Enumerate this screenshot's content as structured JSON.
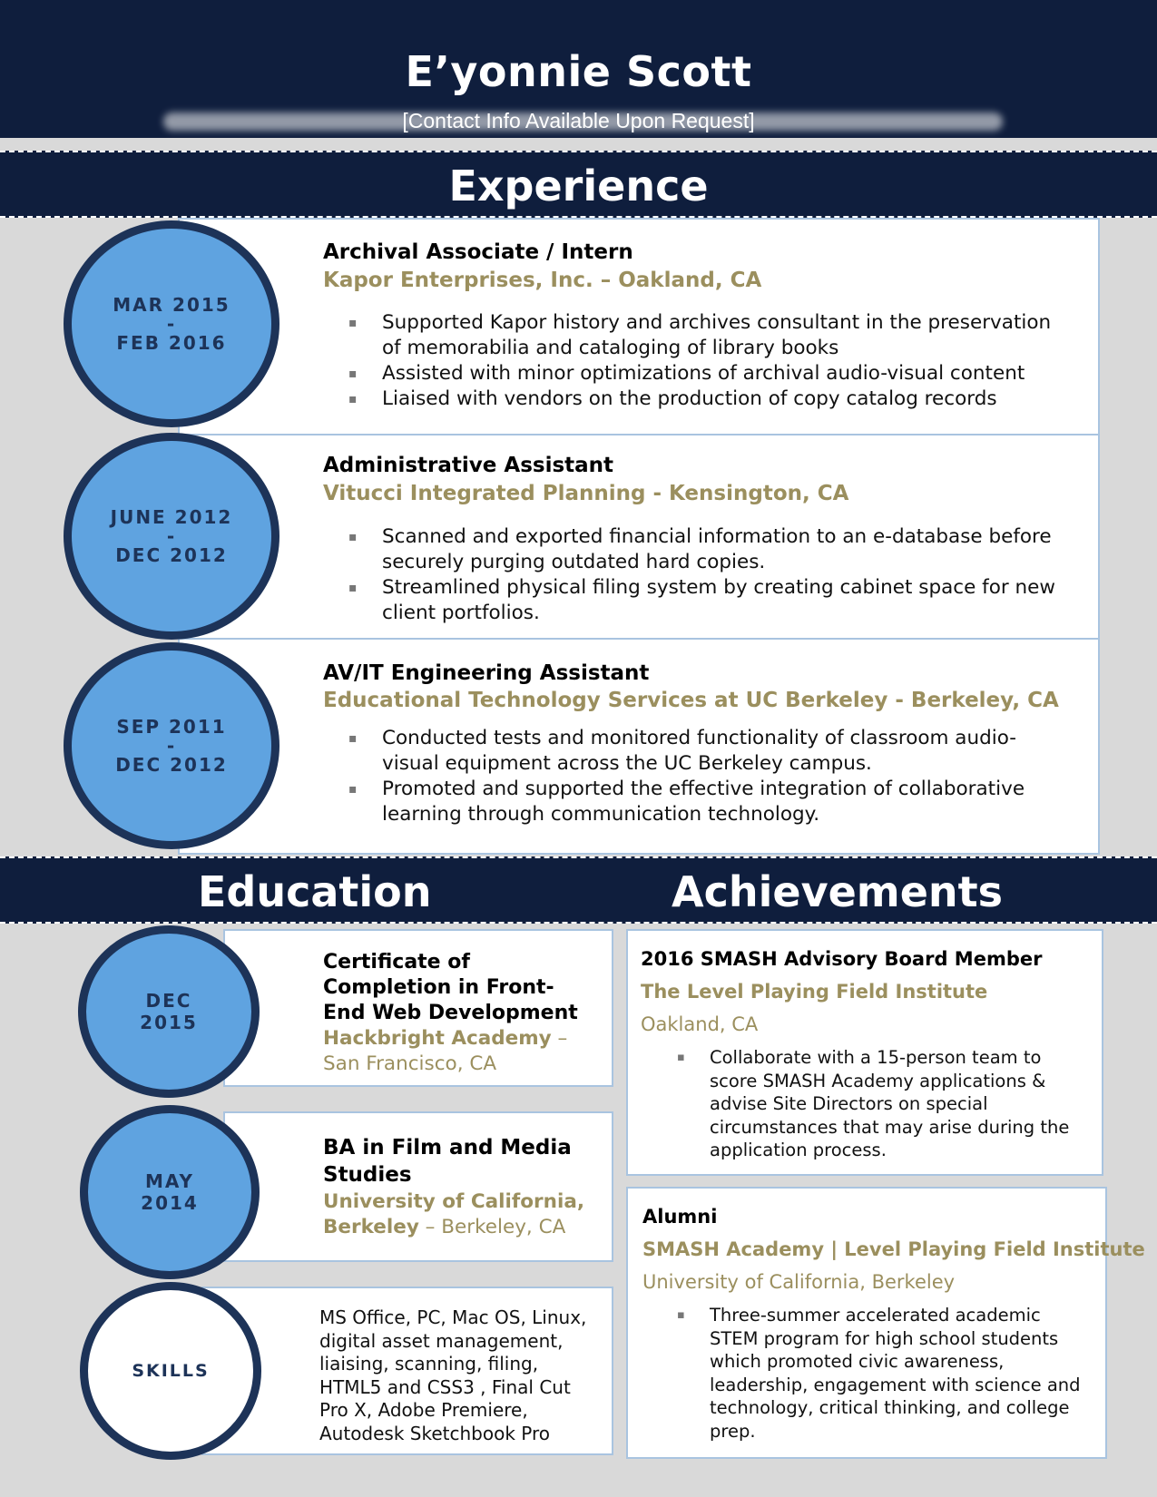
{
  "header": {
    "name": "E’yonnie Scott",
    "contact": "[Contact Info Available Upon Request]"
  },
  "sections": {
    "experience": "Experience",
    "education": "Education",
    "achievements": "Achievements"
  },
  "experience": [
    {
      "date_start": "MAR 2015",
      "date_sep": "-",
      "date_end": "FEB 2016",
      "title": "Archival Associate / Intern",
      "company": "Kapor Enterprises, Inc. – Oakland, CA",
      "bullets": [
        "Supported Kapor history and archives consultant in the preservation of memorabilia and cataloging of library books",
        "Assisted with minor optimizations of archival audio-visual content",
        "Liaised with vendors on the production of copy catalog records"
      ]
    },
    {
      "date_start": "JUNE 2012",
      "date_sep": "-",
      "date_end": "DEC 2012",
      "title": "Administrative Assistant",
      "company": "Vitucci Integrated Planning - Kensington, CA",
      "bullets": [
        "Scanned and exported financial information to an e-database before securely purging outdated hard copies.",
        "Streamlined physical filing system by creating cabinet space for new client portfolios."
      ]
    },
    {
      "date_start": "SEP 2011",
      "date_sep": "-",
      "date_end": "DEC 2012",
      "title": "AV/IT Engineering Assistant",
      "company": "Educational Technology Services at UC Berkeley - Berkeley, CA",
      "bullets": [
        "Conducted tests and monitored functionality of classroom audio-visual equipment across the UC Berkeley campus.",
        "Promoted and supported the effective integration of collaborative learning through communication technology."
      ]
    }
  ],
  "education": [
    {
      "date_line1": "DEC",
      "date_line2": "2015",
      "title": "Certificate of Completion in Front-End Web Development",
      "school": "Hackbright Academy",
      "location": " – San Francisco, CA"
    },
    {
      "date_line1": "MAY",
      "date_line2": "2014",
      "title": "BA in Film and Media Studies",
      "school": "University of California, Berkeley",
      "location": " – Berkeley, CA"
    }
  ],
  "skills": {
    "label": "SKILLS",
    "text": "MS Office, PC, Mac OS, Linux, digital asset management, liaising, scanning, filing, HTML5 and CSS3 , Final Cut Pro X, Adobe Premiere, Autodesk Sketchbook Pro"
  },
  "achievements": [
    {
      "title": "2016 SMASH Advisory Board Member",
      "org": "The Level Playing Field Institute",
      "location": "Oakland, CA",
      "bullets": [
        "Collaborate with a 15-person team to score SMASH Academy applications & advise Site Directors on special circumstances that may arise during the application process."
      ]
    },
    {
      "title": "Alumni",
      "org": "SMASH Academy | Level Playing Field Institute",
      "location": "University of California, Berkeley",
      "bullets": [
        "Three-summer accelerated academic STEM program for high school students which promoted civic awareness, leadership, engagement with science and technology, critical thinking, and college prep."
      ]
    }
  ],
  "colors": {
    "navy": "#0f1e3d",
    "circle_border": "#1d3358",
    "circle_fill": "#5fa3e0",
    "gold": "#9b8f5e",
    "card_border": "#a9c4e0",
    "page_bg": "#d9d9d9"
  }
}
